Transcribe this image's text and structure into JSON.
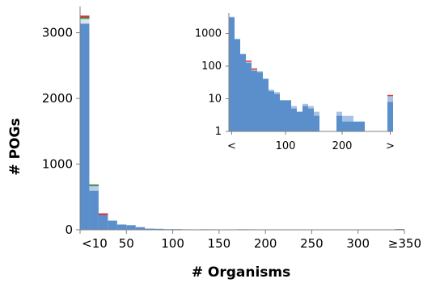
{
  "chart_data": [
    {
      "type": "bar",
      "xlabel": "# Organisms",
      "ylabel": "# POGs",
      "ylim": [
        0,
        3400
      ],
      "xlim": [
        0,
        350
      ],
      "bin_width": 10,
      "grid": false,
      "x_tick_labels": [
        "<10",
        "50",
        "100",
        "150",
        "200",
        "250",
        "300",
        "≥350"
      ],
      "x_tick_values": [
        0,
        50,
        100,
        150,
        200,
        250,
        300,
        350
      ],
      "y_tick_labels": [
        "0",
        "1000",
        "2000",
        "3000"
      ],
      "y_tick_values": [
        0,
        1000,
        2000,
        3000
      ],
      "x": [
        5,
        15,
        25,
        35,
        45,
        55,
        65,
        75,
        85,
        95,
        105,
        115,
        125,
        135,
        145,
        155,
        165,
        175,
        185,
        195,
        205,
        215,
        225,
        235,
        245,
        255,
        265,
        275,
        285,
        295,
        305,
        315,
        325,
        335,
        345
      ],
      "values": [
        3260,
        690,
        250,
        140,
        80,
        70,
        40,
        18,
        15,
        10,
        10,
        7,
        5,
        8,
        7,
        6,
        5,
        8,
        7,
        5,
        6,
        5,
        4,
        4,
        4,
        3,
        3,
        3,
        3,
        3,
        3,
        3,
        3,
        3,
        12
      ],
      "stack_tops": [
        {
          "x": 5,
          "colors": [
            "#e8302a",
            "#3a8d3a",
            "#d8e6f4"
          ]
        },
        {
          "x": 15,
          "colors": [
            "#3a8d3a",
            "#b6cde9"
          ]
        },
        {
          "x": 25,
          "colors": [
            "#e8302a"
          ]
        }
      ],
      "colors": {
        "main": "#5b8fcc",
        "light": "#a7c2e4",
        "red": "#e8302a",
        "green": "#3a8d3a"
      }
    },
    {
      "type": "bar",
      "scale": "log",
      "ylim": [
        1,
        3400
      ],
      "grid": false,
      "x_tick_labels": [
        "<",
        "100",
        "200",
        ">"
      ],
      "y_tick_labels": [
        "1",
        "10",
        "100",
        "1000"
      ],
      "y_tick_values": [
        1,
        10,
        100,
        1000
      ],
      "bars": [
        {
          "x": 5,
          "value": 3260,
          "light": 3100
        },
        {
          "x": 15,
          "value": 690,
          "light": 660
        },
        {
          "x": 25,
          "value": 240,
          "light": 230
        },
        {
          "x": 35,
          "value": 135,
          "light": 125,
          "red": true
        },
        {
          "x": 45,
          "value": 78,
          "light": 72,
          "red": true
        },
        {
          "x": 55,
          "value": 70,
          "light": 65
        },
        {
          "x": 65,
          "value": 42,
          "light": 40
        },
        {
          "x": 75,
          "value": 19,
          "light": 17
        },
        {
          "x": 85,
          "value": 16,
          "light": 14
        },
        {
          "x": 95,
          "value": 9,
          "light": 9
        },
        {
          "x": 105,
          "value": 9,
          "light": 9
        },
        {
          "x": 115,
          "value": 6,
          "light": 5
        },
        {
          "x": 125,
          "value": 4,
          "light": 4
        },
        {
          "x": 135,
          "value": 7,
          "light": 6
        },
        {
          "x": 145,
          "value": 6,
          "light": 5
        },
        {
          "x": 155,
          "value": 4,
          "light": 3
        },
        {
          "x": 165,
          "value": 1,
          "light": 1
        },
        {
          "x": 175,
          "value": 1,
          "light": 1
        },
        {
          "x": 185,
          "value": 1,
          "light": 1
        },
        {
          "x": 195,
          "value": 4,
          "light": 3
        },
        {
          "x": 205,
          "value": 3,
          "light": 2
        },
        {
          "x": 215,
          "value": 3,
          "light": 2
        },
        {
          "x": 225,
          "value": 2,
          "light": 2
        },
        {
          "x": 235,
          "value": 2,
          "light": 2
        },
        {
          "x": 245,
          "value": 1,
          "light": 1
        },
        {
          "x": 255,
          "value": 1,
          "light": 1
        },
        {
          "x": 265,
          "value": 1,
          "light": 1
        },
        {
          "x": 275,
          "value": 1,
          "light": 1
        },
        {
          "x": 285,
          "value": 12,
          "light": 8,
          "red": true
        }
      ],
      "colors": {
        "main": "#5b8fcc",
        "light": "#a7c2e4",
        "red": "#e8302a"
      }
    }
  ]
}
